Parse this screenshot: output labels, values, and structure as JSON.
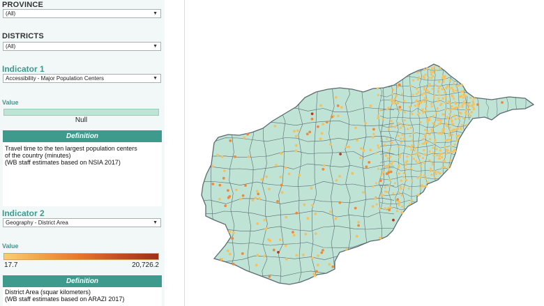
{
  "filters": {
    "province": {
      "label": "PROVINCE",
      "selected": "(All)"
    },
    "districts": {
      "label": "DISTRICTS",
      "selected": "(All)"
    }
  },
  "indicator1": {
    "title": "Indicator 1",
    "selected": "Accessibility - Major Population Centers",
    "value_label": "Value",
    "legend_null": "Null",
    "definition_header": "Definition",
    "definition_lines": [
      "Travel time to the ten largest population centers",
      "of the country (minutes)",
      "(WB staff estimates based on NSIA 2017)"
    ]
  },
  "indicator2": {
    "title": "Indicator 2",
    "selected": "Geography - District Area",
    "value_label": "Value",
    "legend_min": "17.7",
    "legend_max": "20,726.2",
    "definition_header": "Definition",
    "definition_lines": [
      "District Area (squar kilometers)",
      "(WB staff estimates based on ARAZI 2017)"
    ]
  },
  "colors": {
    "map_fill": "#bfe3d5",
    "map_border": "#5b6a72",
    "accent": "#3d9a8d",
    "dot_small": "#f6c15c",
    "dot_medium": "#ee8a36",
    "dot_large": "#b3391f"
  },
  "chevron": "▼"
}
